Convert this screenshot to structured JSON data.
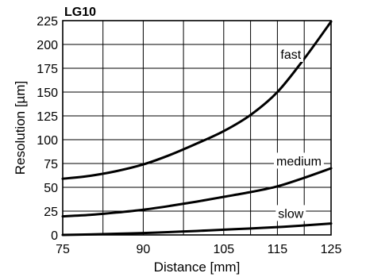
{
  "chart_data": {
    "type": "line",
    "title": "LG10",
    "xlabel": "Distance [mm]",
    "ylabel": "Resolution [µm]",
    "xlim": [
      75,
      125
    ],
    "ylim": [
      0,
      225
    ],
    "x_ticks": [
      75,
      90,
      105,
      115,
      125
    ],
    "x_gridlines": [
      75,
      82.5,
      90,
      97.5,
      105,
      110,
      115,
      120,
      125
    ],
    "y_ticks": [
      0,
      25,
      50,
      75,
      100,
      125,
      150,
      175,
      200,
      225
    ],
    "grid": true,
    "series": [
      {
        "name": "fast",
        "label_at": {
          "x": 117.5,
          "y": 190
        },
        "x": [
          75,
          80,
          85,
          90,
          95,
          100,
          105,
          110,
          115,
          120,
          125
        ],
        "y": [
          59,
          62,
          67,
          74,
          84,
          96,
          109,
          126,
          150,
          185,
          224
        ]
      },
      {
        "name": "medium",
        "label_at": {
          "x": 119,
          "y": 78
        },
        "x": [
          75,
          80,
          85,
          90,
          95,
          100,
          105,
          110,
          115,
          120,
          125
        ],
        "y": [
          19.5,
          21,
          23.5,
          26.5,
          30.5,
          35,
          40,
          45,
          51,
          60,
          70
        ]
      },
      {
        "name": "slow",
        "label_at": {
          "x": 117.5,
          "y": 23
        },
        "x": [
          75,
          80,
          85,
          90,
          95,
          100,
          105,
          110,
          115,
          120,
          125
        ],
        "y": [
          0,
          0.5,
          1.2,
          2,
          3,
          4.2,
          5.5,
          6.8,
          8.2,
          10,
          12
        ]
      }
    ]
  }
}
